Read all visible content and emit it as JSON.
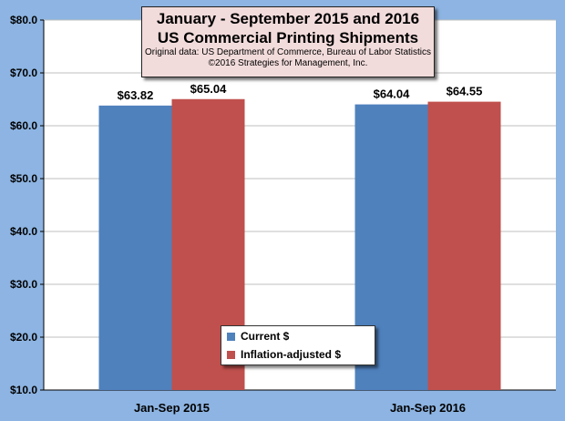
{
  "chart_data": {
    "type": "bar",
    "title": "January - September 2015 and 2016",
    "subtitle": "US Commercial Printing Shipments",
    "notes": [
      "Original data: US Department of Commerce, Bureau of Labor Statistics",
      "©2016 Strategies for Management, Inc."
    ],
    "categories": [
      "Jan-Sep 2015",
      "Jan-Sep 2016"
    ],
    "series": [
      {
        "name": "Current $",
        "color": "#4f81bd",
        "values": [
          63.82,
          64.04
        ],
        "labels": [
          "$63.82",
          "$64.04"
        ]
      },
      {
        "name": "Inflation-adjusted $",
        "color": "#c0504d",
        "values": [
          65.04,
          64.55
        ],
        "labels": [
          "$65.04",
          "$64.55"
        ]
      }
    ],
    "ylim": [
      10,
      80
    ],
    "yticks": [
      10,
      20,
      30,
      40,
      50,
      60,
      70,
      80
    ],
    "ytick_labels": [
      "$10.0",
      "$20.0",
      "$30.0",
      "$40.0",
      "$50.0",
      "$60.0",
      "$70.0",
      "$80.0"
    ],
    "grid": true,
    "legend_position": "bottom-center",
    "background_color": "#8db4e2",
    "plot_background_color": "#ffffff"
  }
}
